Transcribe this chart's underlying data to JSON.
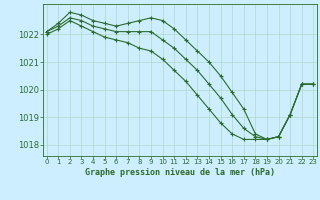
{
  "xlabel": "Graphe pression niveau de la mer (hPa)",
  "hours": [
    0,
    1,
    2,
    3,
    4,
    5,
    6,
    7,
    8,
    9,
    10,
    11,
    12,
    13,
    14,
    15,
    16,
    17,
    18,
    19,
    20,
    21,
    22,
    23
  ],
  "line1": [
    1022.1,
    1022.4,
    1022.8,
    1022.7,
    1022.5,
    1022.4,
    1022.3,
    1022.4,
    1022.5,
    1022.6,
    1022.5,
    1022.2,
    1021.8,
    1021.4,
    1021.0,
    1020.5,
    1019.9,
    1019.3,
    1018.4,
    1018.2,
    1018.3,
    1019.1,
    1020.2,
    1020.2
  ],
  "line2": [
    1022.1,
    1022.3,
    1022.6,
    1022.5,
    1022.3,
    1022.2,
    1022.1,
    1022.1,
    1022.1,
    1022.1,
    1021.8,
    1021.5,
    1021.1,
    1020.7,
    1020.2,
    1019.7,
    1019.1,
    1018.6,
    1018.3,
    1018.2,
    1018.3,
    1019.1,
    1020.2,
    1020.2
  ],
  "line3": [
    1022.0,
    1022.2,
    1022.5,
    1022.3,
    1022.1,
    1021.9,
    1021.8,
    1021.7,
    1021.5,
    1021.4,
    1021.1,
    1020.7,
    1020.3,
    1019.8,
    1019.3,
    1018.8,
    1018.4,
    1018.2,
    1018.2,
    1018.2,
    1018.3,
    1019.1,
    1020.2,
    1020.2
  ],
  "line_color": "#2d6a2d",
  "bg_color": "#cceeff",
  "grid_color": "#b0d8c8",
  "ylim_min": 1017.6,
  "ylim_max": 1023.1,
  "yticks": [
    1018,
    1019,
    1020,
    1021,
    1022
  ],
  "xticks": [
    0,
    1,
    2,
    3,
    4,
    5,
    6,
    7,
    8,
    9,
    10,
    11,
    12,
    13,
    14,
    15,
    16,
    17,
    18,
    19,
    20,
    21,
    22,
    23
  ],
  "marker": "+",
  "markersize": 3,
  "linewidth": 0.8
}
